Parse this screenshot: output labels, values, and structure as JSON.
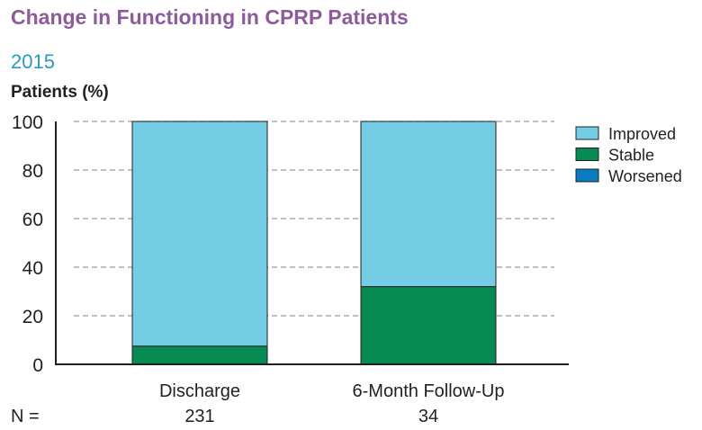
{
  "chart_data": {
    "type": "bar",
    "stacked": true,
    "title": "Change in Functioning in CPRP Patients",
    "subtitle": "2015",
    "ylabel": "Patients (%)",
    "xlabel": "",
    "ylim": [
      0,
      100
    ],
    "yticks": [
      0,
      20,
      40,
      60,
      80,
      100
    ],
    "grid": true,
    "legend_position": "right",
    "categories": [
      "Discharge",
      "6-Month Follow-Up"
    ],
    "n_label": "N =",
    "n_values": [
      "231",
      "34"
    ],
    "series": [
      {
        "name": "Worsened",
        "values": [
          0,
          0
        ],
        "color": "#0a7dc2"
      },
      {
        "name": "Stable",
        "values": [
          7.5,
          32
        ],
        "color": "#078b53"
      },
      {
        "name": "Improved",
        "values": [
          92.5,
          68
        ],
        "color": "#74cde4"
      }
    ],
    "legend": [
      "Improved",
      "Stable",
      "Worsened"
    ]
  }
}
